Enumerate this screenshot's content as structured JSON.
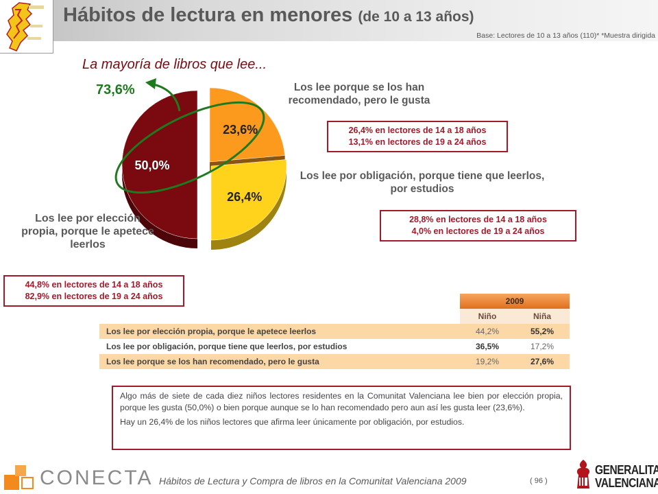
{
  "header": {
    "title": "Hábitos de lectura en menores",
    "title_sub": "(de 10 a 13 años)",
    "base_note": "Base: Lectores de 10 a 13 años (110)*   *Muestra dirigida"
  },
  "intro": "La mayoría de libros que lee...",
  "chart_data": {
    "type": "pie",
    "title": "",
    "slices": [
      {
        "label": "Los lee por elección propia, porque le apetece leerlos",
        "value": 50.0,
        "display": "50,0%",
        "color": "#7a0a0f"
      },
      {
        "label": "Los lee porque se los han recomendado, pero le gusta",
        "value": 23.6,
        "display": "23,6%",
        "color": "#fb9a1c"
      },
      {
        "label": "Los lee por obligación, porque tiene que leerlos, por estudios",
        "value": 26.4,
        "display": "26,4%",
        "color": "#ffd31c"
      }
    ],
    "combined_annotation": "73,6%",
    "combined_color": "#1e7a1e"
  },
  "labels": {
    "recommended": "Los lee porque se los han recomendado, pero le gusta",
    "obligation": "Los lee por obligación, porque tiene que leerlos, por estudios",
    "choice": "Los lee por elección propia, porque le apetece leerlos"
  },
  "boxes": {
    "recommended": [
      "26,4% en lectores de 14 a 18 años",
      "13,1% en lectores de 19 a 24 años"
    ],
    "obligation": [
      "28,8% en lectores de 14 a 18 años",
      "4,0% en lectores de 19 a 24 años"
    ],
    "choice": [
      "44,8% en lectores de 14 a 18 años",
      "82,9% en lectores de 19 a 24 años"
    ]
  },
  "table": {
    "year": "2009",
    "columns": [
      "Niño",
      "Niña"
    ],
    "rows": [
      {
        "label": "Los lee por elección propia, porque le apetece leerlos",
        "nino": "44,2%",
        "nina": "55,2%"
      },
      {
        "label": "Los lee por obligación, porque tiene que leerlos, por estudios",
        "nino": "36,5%",
        "nina": "17,2%"
      },
      {
        "label": "Los lee porque se los han recomendado, pero le gusta",
        "nino": "19,2%",
        "nina": "27,6%"
      }
    ]
  },
  "summary": [
    "Algo más de siete de cada diez niños lectores residentes en la Comunitat Valenciana lee bien por elección propia, porque les gusta (50,0%) o bien porque aunque se lo han recomendado pero aun así les gusta leer (23,6%).",
    "Hay un 26,4% de los niños lectores que afirma leer únicamente por obligación, por estudios."
  ],
  "footer": {
    "text": "Hábitos de Lectura y Compra de libros en la Comunitat Valenciana 2009",
    "page": "( 96 )",
    "conecta": "CONECTA",
    "generalitat_line1": "GENERALITAT",
    "generalitat_line2": "VALENCIANA"
  }
}
